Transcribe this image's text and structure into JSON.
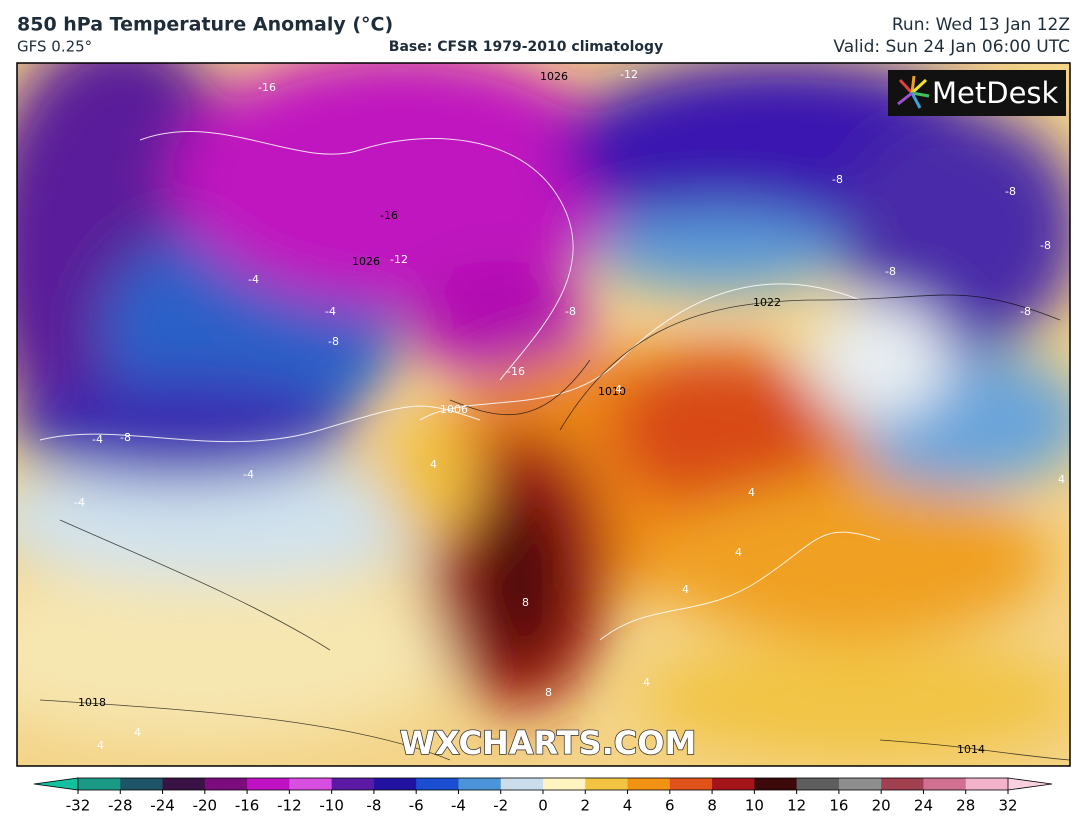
{
  "header": {
    "title": "850 hPa Temperature Anomaly (°C)",
    "model": "GFS 0.25°",
    "base": "Base: CFSR 1979-2010 climatology",
    "run": "Run: Wed 13 Jan 12Z",
    "valid": "Valid: Sun 24 Jan 06:00 UTC"
  },
  "logo": "MetDesk",
  "watermark": "WXCHARTS.COM",
  "map_labels": [
    "-16",
    "-12",
    "1026",
    "-16",
    "-12",
    "1026",
    "-4",
    "-4",
    "-8",
    "-8",
    "-16",
    "-8",
    "-8",
    "-8",
    "-8",
    "1022",
    "1010",
    "1006",
    "4",
    "4",
    "8",
    "8",
    "4",
    "4",
    "4",
    "-4",
    "-8",
    "-4",
    "-4",
    "1018",
    "4",
    "4",
    "1014",
    "-8",
    "4",
    "4"
  ],
  "colorbar": {
    "ticks": [
      -32,
      -28,
      -24,
      -20,
      -16,
      -12,
      -10,
      -8,
      -6,
      -4,
      -2,
      0,
      2,
      4,
      6,
      8,
      10,
      12,
      16,
      20,
      24,
      28,
      32
    ],
    "colors": [
      "#1a9a86",
      "#1e5566",
      "#3b1245",
      "#7c0c7e",
      "#c012c4",
      "#d84ee0",
      "#5a1aa6",
      "#2212a2",
      "#1c4ed2",
      "#4c94da",
      "#c9dded",
      "#fff3c2",
      "#f2c441",
      "#f29212",
      "#e0521a",
      "#a4141a",
      "#3c0a0a",
      "#5e5e5e",
      "#8e8e8e",
      "#a24052",
      "#d27092",
      "#f2b2ca"
    ],
    "under_color": "#14c0a0",
    "over_color": "#f8d0e0"
  }
}
